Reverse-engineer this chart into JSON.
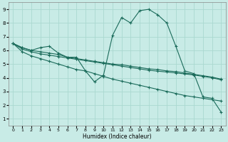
{
  "xlabel": "Humidex (Indice chaleur)",
  "ylabel": "",
  "xlim": [
    -0.5,
    23.5
  ],
  "ylim": [
    0.5,
    9.5
  ],
  "xticks": [
    0,
    1,
    2,
    3,
    4,
    5,
    6,
    7,
    8,
    9,
    10,
    11,
    12,
    13,
    14,
    15,
    16,
    17,
    18,
    19,
    20,
    21,
    22,
    23
  ],
  "yticks": [
    1,
    2,
    3,
    4,
    5,
    6,
    7,
    8,
    9
  ],
  "bg_color": "#c8ebe6",
  "line_color": "#1a6b5a",
  "grid_color": "#aad8d0",
  "lines": [
    {
      "x": [
        0,
        1,
        2,
        3,
        4,
        5,
        6,
        7,
        8,
        9,
        10,
        11,
        12,
        13,
        14,
        15,
        16,
        17,
        18,
        19,
        20,
        21,
        22,
        23
      ],
      "y": [
        6.5,
        6.2,
        6.0,
        6.2,
        6.3,
        5.8,
        5.5,
        5.5,
        4.5,
        3.7,
        4.2,
        7.1,
        8.4,
        8.0,
        8.9,
        9.0,
        8.6,
        8.0,
        6.3,
        4.5,
        4.3,
        2.6,
        2.5,
        1.5
      ]
    },
    {
      "x": [
        0,
        1,
        2,
        3,
        4,
        5,
        6,
        7,
        8,
        9,
        10,
        11,
        12,
        13,
        14,
        15,
        16,
        17,
        18,
        19,
        20,
        21,
        22,
        23
      ],
      "y": [
        6.5,
        6.2,
        6.0,
        5.9,
        5.8,
        5.7,
        5.5,
        5.4,
        5.3,
        5.2,
        5.1,
        5.0,
        4.95,
        4.85,
        4.75,
        4.65,
        4.6,
        4.5,
        4.45,
        4.35,
        4.25,
        4.15,
        4.05,
        3.9
      ]
    },
    {
      "x": [
        0,
        1,
        2,
        3,
        4,
        5,
        6,
        7,
        8,
        9,
        10,
        11,
        12,
        13,
        14,
        15,
        16,
        17,
        18,
        19,
        20,
        21,
        22,
        23
      ],
      "y": [
        6.5,
        6.1,
        5.9,
        5.75,
        5.65,
        5.55,
        5.45,
        5.35,
        5.25,
        5.15,
        5.05,
        4.95,
        4.85,
        4.75,
        4.65,
        4.55,
        4.48,
        4.42,
        4.35,
        4.28,
        4.2,
        4.1,
        4.0,
        3.85
      ]
    },
    {
      "x": [
        0,
        1,
        2,
        3,
        4,
        5,
        6,
        7,
        8,
        9,
        10,
        11,
        12,
        13,
        14,
        15,
        16,
        17,
        18,
        19,
        20,
        21,
        22,
        23
      ],
      "y": [
        6.5,
        5.9,
        5.6,
        5.4,
        5.2,
        5.0,
        4.8,
        4.6,
        4.5,
        4.3,
        4.1,
        3.9,
        3.75,
        3.6,
        3.45,
        3.3,
        3.15,
        3.0,
        2.85,
        2.7,
        2.6,
        2.5,
        2.4,
        2.3
      ]
    }
  ]
}
